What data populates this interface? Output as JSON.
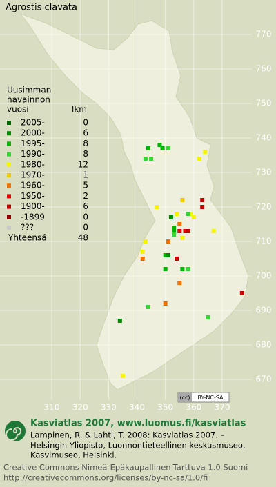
{
  "title": "Agrostis clavata",
  "map": {
    "xticks": [
      310,
      320,
      330,
      340,
      350,
      360,
      370
    ],
    "yticks": [
      770,
      760,
      750,
      740,
      730,
      720,
      710,
      700,
      690,
      680,
      670
    ],
    "points": {
      "x": [
        344,
        348,
        349,
        351,
        343,
        345,
        364,
        362,
        363,
        363,
        356,
        347,
        352,
        354,
        359,
        358,
        360,
        355,
        353,
        353,
        355,
        357,
        358,
        353,
        356,
        367,
        343,
        351,
        342,
        350,
        351,
        354,
        342,
        350,
        356,
        358,
        355,
        377,
        350,
        344,
        365,
        334,
        335
      ],
      "y": [
        737,
        738,
        737,
        737,
        734,
        734,
        736,
        734,
        722,
        720,
        722,
        720,
        717,
        718,
        718,
        718,
        717,
        715,
        714,
        713,
        713,
        713,
        713,
        712,
        711,
        713,
        710,
        710,
        707,
        706,
        706,
        705,
        705,
        702,
        702,
        702,
        698,
        695,
        692,
        691,
        688,
        687,
        671
      ],
      "class": [
        2,
        2,
        2,
        3,
        3,
        3,
        4,
        4,
        8,
        8,
        5,
        4,
        1,
        4,
        4,
        3,
        4,
        6,
        2,
        2,
        7,
        7,
        8,
        3,
        4,
        4,
        4,
        6,
        4,
        2,
        1,
        8,
        6,
        2,
        2,
        3,
        6,
        8,
        6,
        3,
        3,
        1,
        4
      ]
    }
  },
  "legend": {
    "heading": [
      "Uusimman",
      "havainnon",
      "vuosi"
    ],
    "count_heading": "lkm",
    "entries": [
      {
        "label": "2005-",
        "count": 0,
        "color": "#006b00"
      },
      {
        "label": "2000-",
        "count": 6,
        "color": "#008c00"
      },
      {
        "label": "1995-",
        "count": 8,
        "color": "#00b400"
      },
      {
        "label": "1990-",
        "count": 8,
        "color": "#33d633"
      },
      {
        "label": "1980-",
        "count": 12,
        "color": "#f5f500"
      },
      {
        "label": "1970-",
        "count": 1,
        "color": "#f0c800"
      },
      {
        "label": "1960-",
        "count": 5,
        "color": "#f07000"
      },
      {
        "label": "1950-",
        "count": 2,
        "color": "#f00000"
      },
      {
        "label": "1900-",
        "count": 6,
        "color": "#c80000"
      },
      {
        "label": "-1899",
        "count": 0,
        "color": "#8c0000"
      },
      {
        "label": "???",
        "count": 0,
        "color": "#c8c8c8"
      }
    ],
    "total_label": "Yhteensä",
    "total": 48
  },
  "badge": [
    "(cc)",
    "BY-NC-SA"
  ],
  "footer": {
    "headline": "Kasviatlas 2007, www.luomus.fi/kasviatlas",
    "citation": [
      "Lampinen, R. & Lahti, T. 2008: Kasviatlas 2007. –",
      "Helsingin Yliopisto, Luonnontieteellinen keskusmuseo,",
      "Kasvimuseo, Helsinki."
    ],
    "license": [
      "Creative Commons Nimeä-Epäkaupallinen-Tarttuva 1.0 Suomi",
      "http://creativecommons.org/licenses/by-nc-sa/1.0/fi"
    ]
  }
}
